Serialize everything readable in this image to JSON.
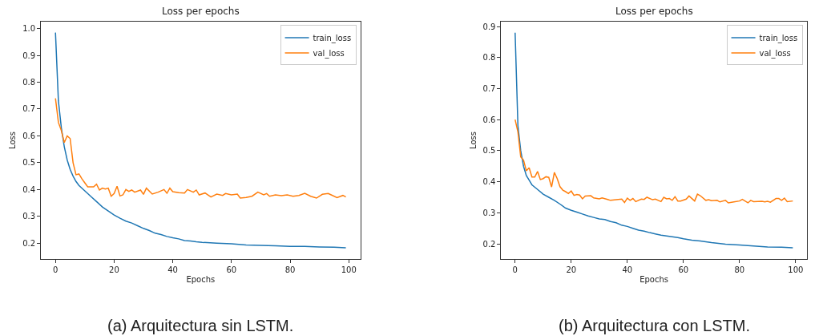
{
  "chart_data": [
    {
      "type": "line",
      "title": "Loss per epochs",
      "xlabel": "Epochs",
      "ylabel": "Loss",
      "xlim": [
        -4.95,
        103.95
      ],
      "ylim": [
        0.142,
        1.025
      ],
      "xticks": [
        0,
        20,
        40,
        60,
        80,
        100
      ],
      "yticks": [
        0.2,
        0.3,
        0.4,
        0.5,
        0.6,
        0.7,
        0.8,
        0.9,
        {
          "value": 1.0,
          "label": "1.0"
        }
      ],
      "legend": "top right",
      "annotations": [
        "(a) Arquitectura sin LSTM."
      ],
      "series": [
        {
          "name": "train_loss",
          "color": "#1f77b4",
          "x": [
            0,
            1,
            2,
            3,
            4,
            5,
            6,
            7,
            8,
            10,
            12,
            14,
            16,
            18,
            20,
            22,
            24,
            26,
            28,
            30,
            32,
            34,
            36,
            38,
            40,
            42,
            44,
            46,
            48,
            50,
            55,
            60,
            65,
            70,
            75,
            80,
            85,
            90,
            95,
            99
          ],
          "values": [
            0.985,
            0.73,
            0.63,
            0.56,
            0.51,
            0.475,
            0.45,
            0.43,
            0.415,
            0.395,
            0.375,
            0.355,
            0.335,
            0.32,
            0.305,
            0.293,
            0.282,
            0.275,
            0.265,
            0.255,
            0.247,
            0.237,
            0.232,
            0.225,
            0.22,
            0.216,
            0.21,
            0.208,
            0.205,
            0.203,
            0.2,
            0.198,
            0.193,
            0.192,
            0.19,
            0.188,
            0.188,
            0.186,
            0.185,
            0.183
          ]
        },
        {
          "name": "val_loss",
          "color": "#ff7f0e",
          "x": [
            0,
            1,
            2,
            3,
            4,
            5,
            6,
            7,
            8,
            9,
            10,
            11,
            13,
            14,
            15,
            16,
            17,
            18,
            19,
            20,
            21,
            22,
            23,
            24,
            25,
            26,
            27,
            29,
            30,
            31,
            33,
            35,
            37,
            38,
            39,
            40,
            42,
            44,
            45,
            47,
            48,
            49,
            51,
            53,
            55,
            57,
            58,
            60,
            62,
            63,
            65,
            67,
            69,
            71,
            72,
            73,
            75,
            77,
            79,
            81,
            83,
            85,
            87,
            89,
            91,
            93,
            94,
            96,
            98,
            99
          ],
          "values": [
            0.74,
            0.65,
            0.62,
            0.575,
            0.6,
            0.59,
            0.5,
            0.455,
            0.458,
            0.44,
            0.425,
            0.41,
            0.41,
            0.42,
            0.398,
            0.405,
            0.402,
            0.405,
            0.375,
            0.385,
            0.412,
            0.376,
            0.38,
            0.4,
            0.393,
            0.398,
            0.39,
            0.398,
            0.382,
            0.405,
            0.383,
            0.39,
            0.4,
            0.386,
            0.405,
            0.392,
            0.388,
            0.387,
            0.4,
            0.39,
            0.398,
            0.38,
            0.387,
            0.372,
            0.383,
            0.378,
            0.385,
            0.38,
            0.383,
            0.368,
            0.37,
            0.375,
            0.39,
            0.38,
            0.385,
            0.375,
            0.38,
            0.377,
            0.38,
            0.375,
            0.378,
            0.386,
            0.375,
            0.368,
            0.382,
            0.385,
            0.38,
            0.37,
            0.378,
            0.372
          ]
        }
      ]
    },
    {
      "type": "line",
      "title": "Loss per epochs",
      "xlabel": "Epochs",
      "ylabel": "Loss",
      "xlim": [
        -4.95,
        103.95
      ],
      "ylim": [
        0.152,
        0.915
      ],
      "xticks": [
        0,
        20,
        40,
        60,
        80,
        100
      ],
      "yticks": [
        0.2,
        0.3,
        0.4,
        0.5,
        0.6,
        0.7,
        0.8,
        0.9
      ],
      "legend": "top right",
      "annotations": [
        "(b) Arquitectura con LSTM."
      ],
      "series": [
        {
          "name": "train_loss",
          "color": "#1f77b4",
          "x": [
            0,
            1,
            2,
            3,
            4,
            5,
            6,
            8,
            10,
            12,
            14,
            16,
            18,
            20,
            22,
            24,
            26,
            28,
            30,
            32,
            34,
            36,
            38,
            40,
            42,
            44,
            46,
            48,
            50,
            52,
            55,
            58,
            60,
            63,
            66,
            70,
            75,
            80,
            85,
            90,
            95,
            99
          ],
          "values": [
            0.88,
            0.58,
            0.5,
            0.45,
            0.42,
            0.405,
            0.39,
            0.375,
            0.36,
            0.35,
            0.34,
            0.328,
            0.315,
            0.308,
            0.302,
            0.296,
            0.29,
            0.285,
            0.28,
            0.278,
            0.272,
            0.268,
            0.26,
            0.256,
            0.25,
            0.244,
            0.241,
            0.236,
            0.232,
            0.228,
            0.224,
            0.22,
            0.216,
            0.212,
            0.209,
            0.204,
            0.199,
            0.196,
            0.193,
            0.19,
            0.189,
            0.187
          ]
        },
        {
          "name": "val_loss",
          "color": "#ff7f0e",
          "x": [
            0,
            1,
            2,
            3,
            4,
            5,
            6,
            7,
            8,
            9,
            10,
            11,
            12,
            13,
            14,
            15,
            16,
            17,
            18,
            19,
            20,
            21,
            22,
            23,
            24,
            25,
            27,
            28,
            30,
            31,
            33,
            34,
            36,
            38,
            39,
            40,
            41,
            42,
            43,
            45,
            46,
            47,
            49,
            50,
            52,
            53,
            54,
            55,
            56,
            57,
            58,
            59,
            61,
            62,
            64,
            65,
            66,
            68,
            69,
            70,
            72,
            73,
            75,
            76,
            78,
            80,
            81,
            83,
            84,
            85,
            88,
            89,
            90,
            91,
            93,
            94,
            95,
            96,
            97,
            99
          ],
          "values": [
            0.6,
            0.56,
            0.48,
            0.47,
            0.435,
            0.445,
            0.415,
            0.415,
            0.433,
            0.407,
            0.41,
            0.416,
            0.414,
            0.383,
            0.43,
            0.41,
            0.384,
            0.373,
            0.368,
            0.362,
            0.37,
            0.356,
            0.359,
            0.357,
            0.345,
            0.354,
            0.355,
            0.348,
            0.345,
            0.348,
            0.343,
            0.34,
            0.342,
            0.344,
            0.333,
            0.347,
            0.34,
            0.346,
            0.336,
            0.344,
            0.343,
            0.35,
            0.342,
            0.344,
            0.336,
            0.35,
            0.345,
            0.346,
            0.34,
            0.352,
            0.338,
            0.338,
            0.344,
            0.354,
            0.338,
            0.36,
            0.355,
            0.34,
            0.342,
            0.339,
            0.34,
            0.335,
            0.34,
            0.332,
            0.335,
            0.338,
            0.343,
            0.332,
            0.34,
            0.336,
            0.337,
            0.335,
            0.337,
            0.334,
            0.346,
            0.346,
            0.34,
            0.347,
            0.336,
            0.338
          ]
        }
      ]
    }
  ]
}
